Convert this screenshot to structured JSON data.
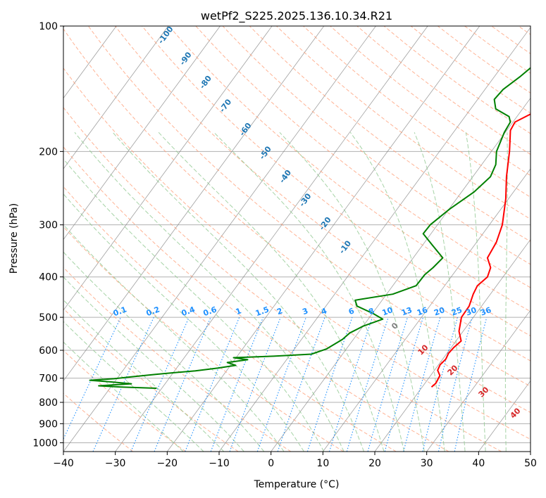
{
  "chart_data": {
    "type": "line",
    "subtype": "skew-t log-p sounding",
    "title": "wetPf2_S225.2025.136.10.34.R21",
    "xlabel": "Temperature (°C)",
    "ylabel": "Pressure (hPa)",
    "xlim": [
      -40,
      50
    ],
    "ylim": [
      1050,
      100
    ],
    "y_scale": "log",
    "x_ticks": [
      -40,
      -30,
      -20,
      -10,
      0,
      10,
      20,
      30,
      40,
      50
    ],
    "y_ticks": [
      100,
      200,
      300,
      400,
      500,
      600,
      700,
      800,
      900,
      1000
    ],
    "grid": true,
    "series": [
      {
        "key": "temperature",
        "color": "#ff0000",
        "points": [
          {
            "p": 100,
            "t": 10.0
          },
          {
            "p": 110,
            "t": 6.0
          },
          {
            "p": 118,
            "t": 5.2
          },
          {
            "p": 130,
            "t": 4.8
          },
          {
            "p": 145,
            "t": 4.8
          },
          {
            "p": 157,
            "t": 3.8
          },
          {
            "p": 170,
            "t": 0.4
          },
          {
            "p": 178,
            "t": 0.7
          },
          {
            "p": 200,
            "t": 3.5
          },
          {
            "p": 230,
            "t": 6.5
          },
          {
            "p": 260,
            "t": 9.5
          },
          {
            "p": 300,
            "t": 12.5
          },
          {
            "p": 330,
            "t": 13.8
          },
          {
            "p": 360,
            "t": 14.3
          },
          {
            "p": 380,
            "t": 16.3
          },
          {
            "p": 400,
            "t": 17.0
          },
          {
            "p": 420,
            "t": 16.3
          },
          {
            "p": 440,
            "t": 16.7
          },
          {
            "p": 470,
            "t": 17.6
          },
          {
            "p": 500,
            "t": 17.7
          },
          {
            "p": 540,
            "t": 19.2
          },
          {
            "p": 570,
            "t": 21.0
          },
          {
            "p": 590,
            "t": 20.5
          },
          {
            "p": 610,
            "t": 20.3
          },
          {
            "p": 630,
            "t": 20.6
          },
          {
            "p": 650,
            "t": 20.3
          },
          {
            "p": 670,
            "t": 20.6
          },
          {
            "p": 690,
            "t": 21.8
          },
          {
            "p": 720,
            "t": 22.1
          },
          {
            "p": 735,
            "t": 21.8
          }
        ]
      },
      {
        "key": "dewpoint",
        "color": "#008000",
        "points": [
          {
            "p": 100,
            "t": 0.2
          },
          {
            "p": 110,
            "t": -1.0
          },
          {
            "p": 120,
            "t": -3.5
          },
          {
            "p": 132,
            "t": -5.0
          },
          {
            "p": 142,
            "t": -6.5
          },
          {
            "p": 150,
            "t": -6.8
          },
          {
            "p": 158,
            "t": -5.2
          },
          {
            "p": 165,
            "t": -1.5
          },
          {
            "p": 170,
            "t": -0.5
          },
          {
            "p": 180,
            "t": -0.2
          },
          {
            "p": 200,
            "t": 1.0
          },
          {
            "p": 215,
            "t": 2.7
          },
          {
            "p": 230,
            "t": 3.4
          },
          {
            "p": 250,
            "t": 2.4
          },
          {
            "p": 275,
            "t": 0.1
          },
          {
            "p": 300,
            "t": -1.4
          },
          {
            "p": 315,
            "t": -1.5
          },
          {
            "p": 335,
            "t": 1.8
          },
          {
            "p": 360,
            "t": 5.7
          },
          {
            "p": 380,
            "t": 5.2
          },
          {
            "p": 395,
            "t": 4.6
          },
          {
            "p": 420,
            "t": 4.5
          },
          {
            "p": 440,
            "t": 1.2
          },
          {
            "p": 455,
            "t": -5.2
          },
          {
            "p": 470,
            "t": -4.0
          },
          {
            "p": 490,
            "t": 0.2
          },
          {
            "p": 505,
            "t": 2.8
          },
          {
            "p": 525,
            "t": 0.0
          },
          {
            "p": 545,
            "t": -1.6
          },
          {
            "p": 565,
            "t": -2.1
          },
          {
            "p": 595,
            "t": -3.8
          },
          {
            "p": 613,
            "t": -6.0
          },
          {
            "p": 620,
            "t": -13.0
          },
          {
            "p": 625,
            "t": -20.5
          },
          {
            "p": 632,
            "t": -17.5
          },
          {
            "p": 642,
            "t": -21.0
          },
          {
            "p": 652,
            "t": -19.0
          },
          {
            "p": 662,
            "t": -22.0
          },
          {
            "p": 672,
            "t": -26.0
          },
          {
            "p": 685,
            "t": -33.0
          },
          {
            "p": 695,
            "t": -37.5
          },
          {
            "p": 702,
            "t": -40.5
          },
          {
            "p": 708,
            "t": -45.0
          },
          {
            "p": 714,
            "t": -41.0
          },
          {
            "p": 722,
            "t": -36.5
          },
          {
            "p": 730,
            "t": -42.5
          },
          {
            "p": 735,
            "t": -38.0
          },
          {
            "p": 740,
            "t": -31.0
          }
        ]
      }
    ],
    "isotherm_labels": [
      -100,
      -90,
      -80,
      -70,
      -60,
      -50,
      -40,
      -30,
      -20,
      -10
    ],
    "isotherm_label_color": "#1f77b4",
    "mixing_ratio_labels": [
      "0.1",
      "0.2",
      "0.4",
      "0.6",
      "1",
      "1.5",
      "2",
      "3",
      "4",
      "6",
      "8",
      "10",
      "13",
      "16",
      "20",
      "25",
      "30",
      "36"
    ],
    "mixing_ratio_color": "#1e90ff",
    "moist_adiabat_labels": [
      "0",
      "10",
      "20",
      "30",
      "40"
    ],
    "moist_adiabat_zero_color": "#808080",
    "moist_adiabat_label_color": "#d62728",
    "dry_adiabat_color": "#ffa07a",
    "moist_adiabat_color": "#90c890",
    "isotherm_line_color": "#7f7f7f"
  }
}
